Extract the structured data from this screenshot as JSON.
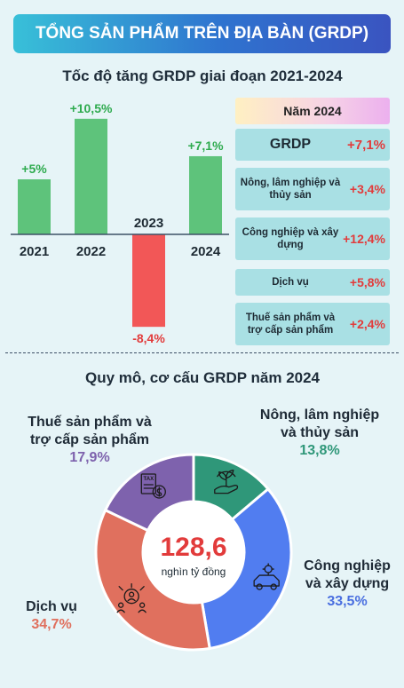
{
  "banner_title": "TỔNG SẢN PHẨM TRÊN ĐỊA BÀN (GRDP)",
  "chart_data": [
    {
      "type": "bar",
      "title": "Tốc độ tăng GRDP giai đoạn 2021-2024",
      "categories": [
        "2021",
        "2022",
        "2023",
        "2024"
      ],
      "values": [
        5,
        10.5,
        -8.4,
        7.1
      ],
      "value_labels": [
        "+5%",
        "+10,5%",
        "-8,4%",
        "+7,1%"
      ],
      "colors": {
        "positive": "#5ec37b",
        "negative": "#f25757",
        "positive_label": "#2fab4f",
        "negative_label": "#e23b3b"
      }
    },
    {
      "type": "pie",
      "title": "Quy mô, cơ cấu GRDP năm 2024",
      "center_value": "128,6",
      "center_unit": "nghìn tỷ đồng",
      "slices": [
        {
          "name": "Nông, lâm nghiệp và thủy sản",
          "name_lines": [
            "Nông, lâm nghiệp",
            "và thủy sản"
          ],
          "value": 13.8,
          "label": "13,8%",
          "color": "#2f9779",
          "label_color": "#2f9779",
          "icon": "plant-hand-icon"
        },
        {
          "name": "Công nghiệp và xây dựng",
          "name_lines": [
            "Công nghiệp",
            "và xây dựng"
          ],
          "value": 33.5,
          "label": "33,5%",
          "color": "#517df0",
          "label_color": "#4a6fe0",
          "icon": "car-gear-icon"
        },
        {
          "name": "Dịch vụ",
          "name_lines": [
            "Dịch vụ"
          ],
          "value": 34.7,
          "label": "34,7%",
          "color": "#e0705e",
          "label_color": "#e0705e",
          "icon": "service-people-icon"
        },
        {
          "name": "Thuế sản phẩm và trợ cấp sản phẩm",
          "name_lines": [
            "Thuế sản phẩm và",
            "trợ cấp sản phẩm"
          ],
          "value": 17.9,
          "label": "17,9%",
          "color": "#7e62ad",
          "label_color": "#7e62ad",
          "icon": "tax-money-icon"
        }
      ]
    }
  ],
  "year_panel": {
    "title": "Năm 2024",
    "rows": [
      {
        "label": "GRDP",
        "value": "+7,1%"
      },
      {
        "label": "Nông, lâm nghiệp và thủy sản",
        "value": "+3,4%"
      },
      {
        "label": "Công nghiệp và xây dựng",
        "value": "+12,4%"
      },
      {
        "label": "Dịch vụ",
        "value": "+5,8%"
      },
      {
        "label": "Thuế sản phẩm và trợ cấp sản phẩm",
        "value": "+2,4%"
      }
    ]
  }
}
